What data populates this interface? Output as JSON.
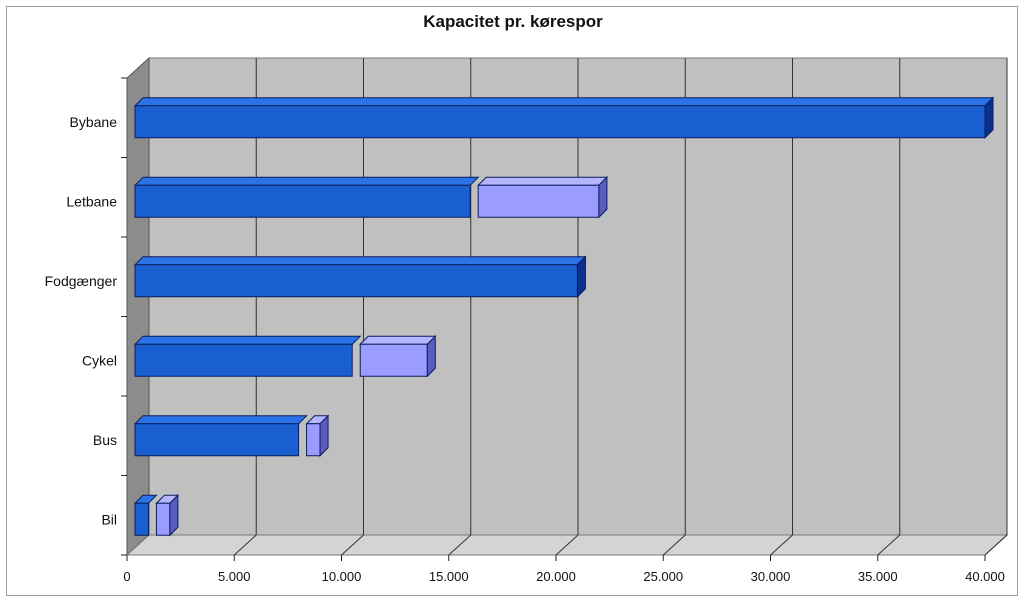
{
  "chart_data": {
    "type": "bar",
    "orientation": "horizontal",
    "stacked": true,
    "title": "Kapacitet pr. kørespor",
    "categories": [
      "Bybane",
      "Letbane",
      "Fodgænger",
      "Cykel",
      "Bus",
      "Bil"
    ],
    "series": [
      {
        "values": [
          40000,
          16000,
          21000,
          10500,
          8000,
          1000
        ]
      },
      {
        "values": [
          0,
          6000,
          0,
          3500,
          1000,
          1000
        ]
      }
    ],
    "xlim": [
      0,
      40000
    ],
    "xticks": [
      0,
      5000,
      10000,
      15000,
      20000,
      25000,
      30000,
      35000,
      40000
    ],
    "xtick_labels": [
      "0",
      "5.000",
      "10.000",
      "15.000",
      "20.000",
      "25.000",
      "30.000",
      "35.000",
      "40.000"
    ],
    "grid": true,
    "legend": "none",
    "colors": {
      "series_0": "#1a5fd0",
      "series_0_top": "#2b74e8",
      "series_0_side": "#0c2f8a",
      "series_1": "#9a9cff",
      "series_1_top": "#b4b6ff",
      "series_1_side": "#5a5cc0",
      "plot_back": "#c0c0c0",
      "plot_floor": "#d4d4d4",
      "plot_wall": "#8c8c8c"
    }
  }
}
